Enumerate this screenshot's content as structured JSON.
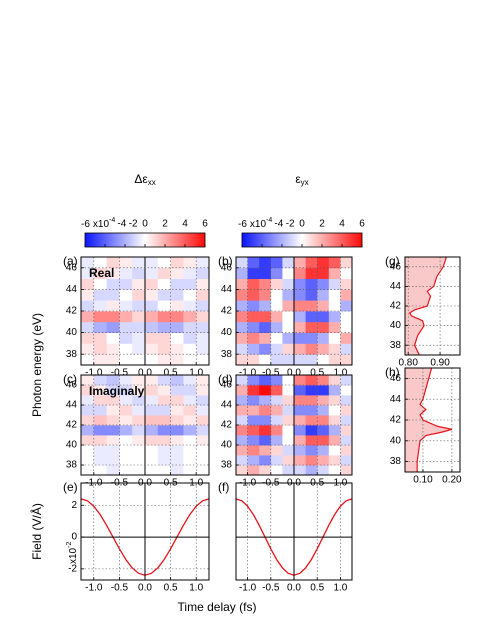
{
  "chart_data": [
    {
      "type": "heatmap",
      "panel_label": "(a)",
      "annotation": "Real",
      "title": "Δε",
      "title_sub": "xx",
      "ylabel": "Photon energy (eV)",
      "colorbar": {
        "ticks": [
          -6,
          -4,
          -2,
          0,
          2,
          4,
          6
        ],
        "multiplier": "x10",
        "exponent": "-4"
      },
      "x": [
        -1.125,
        -0.875,
        -0.625,
        -0.375,
        -0.125,
        0.125,
        0.375,
        0.625,
        0.875,
        1.125
      ],
      "y": [
        37.5,
        38.5,
        39.5,
        40.5,
        41.5,
        42.5,
        43.5,
        44.5,
        45.5,
        46.5
      ],
      "z": [
        [
          0,
          0.5,
          0.5,
          0,
          0,
          0,
          0.5,
          0.5,
          0,
          0
        ],
        [
          0.5,
          1,
          0.5,
          0,
          -0.5,
          0.5,
          1,
          0.5,
          0,
          -0.5
        ],
        [
          1,
          1,
          0,
          -1,
          -0.5,
          1,
          1,
          0,
          -1,
          -0.5
        ],
        [
          -1,
          -2,
          -2.5,
          -1,
          -1,
          -1.5,
          -2,
          -2,
          -1,
          -1
        ],
        [
          2,
          3,
          3,
          2,
          1,
          2,
          3,
          3,
          2,
          1
        ],
        [
          -1,
          -0.5,
          0.5,
          -0.5,
          -1,
          -1,
          0,
          0.5,
          -0.5,
          -1
        ],
        [
          0.5,
          -1,
          -1,
          0,
          1,
          0.5,
          -1,
          -1,
          0,
          1
        ],
        [
          1,
          0,
          -1,
          -1,
          0.5,
          1,
          0,
          -1,
          -1,
          0.5
        ],
        [
          -0.5,
          1,
          0.5,
          -0.5,
          -1,
          -0.5,
          1,
          0.5,
          -0.5,
          -1
        ],
        [
          -0.5,
          0,
          1,
          0.5,
          -0.5,
          -0.5,
          0,
          1,
          0.5,
          -0.5
        ]
      ],
      "clim": [
        -6,
        6
      ],
      "colormap": [
        "#0a14ff",
        "#ffffff",
        "#ff0a0a"
      ],
      "xlim": [
        -1.25,
        1.25
      ],
      "ylim": [
        37,
        47
      ],
      "xticks": [
        {
          "value": -1,
          "label": "-1.0"
        },
        -0.5,
        {
          "value": 0,
          "label": "0.0"
        },
        0.5,
        {
          "value": 1,
          "label": "1.0"
        }
      ],
      "yticks": [
        38,
        40,
        42,
        44,
        46
      ]
    },
    {
      "type": "heatmap",
      "panel_label": "(b)",
      "title": "ε",
      "title_sub": "yx",
      "colorbar": {
        "ticks": [
          -6,
          -4,
          -2,
          0,
          2,
          4,
          6
        ],
        "multiplier": "x10",
        "exponent": "-4"
      },
      "x": [
        -1.125,
        -0.875,
        -0.625,
        -0.375,
        -0.125,
        0.125,
        0.375,
        0.625,
        0.875,
        1.125
      ],
      "y": [
        37.5,
        38.5,
        39.5,
        40.5,
        41.5,
        42.5,
        43.5,
        44.5,
        45.5,
        46.5
      ],
      "z": [
        [
          1,
          1,
          0,
          -1,
          -1,
          -1,
          -1,
          0,
          1,
          1
        ],
        [
          -1,
          -2,
          -3,
          -1,
          1,
          2,
          3,
          2,
          1,
          -1
        ],
        [
          2,
          3,
          2,
          0,
          -2,
          -3,
          -3,
          -2,
          0,
          2
        ],
        [
          -2,
          -3,
          -4,
          -2,
          0,
          2,
          4,
          4,
          2,
          0
        ],
        [
          3,
          4,
          4,
          2,
          0,
          -2,
          -4,
          -4,
          -2,
          0
        ],
        [
          -2,
          -3,
          -2,
          0,
          2,
          3,
          3,
          2,
          0,
          -2
        ],
        [
          3,
          4,
          3,
          0,
          -2,
          -3,
          -4,
          -2,
          0,
          2
        ],
        [
          2,
          4,
          3,
          1,
          -1,
          -3,
          -4,
          -3,
          -1,
          1
        ],
        [
          -2,
          -5,
          -5,
          -3,
          0,
          3,
          5,
          5,
          2,
          0
        ],
        [
          -1,
          -4,
          -5,
          -4,
          -1,
          2,
          4,
          5,
          4,
          1
        ]
      ],
      "clim": [
        -6,
        6
      ],
      "colormap": [
        "#0a14ff",
        "#ffffff",
        "#ff0a0a"
      ],
      "xlim": [
        -1.25,
        1.25
      ],
      "ylim": [
        37,
        47
      ],
      "xticks": [
        {
          "value": -1,
          "label": "-1.0"
        },
        -0.5,
        {
          "value": 0,
          "label": "0.0"
        },
        0.5,
        {
          "value": 1,
          "label": "1.0"
        }
      ],
      "yticks": [
        38,
        40,
        42,
        44,
        46
      ]
    },
    {
      "type": "heatmap",
      "panel_label": "(c)",
      "annotation": "Imaginaly",
      "x": [
        -1.125,
        -0.875,
        -0.625,
        -0.375,
        -0.125,
        0.125,
        0.375,
        0.625,
        0.875,
        1.125
      ],
      "y": [
        37.5,
        38.5,
        39.5,
        40.5,
        41.5,
        42.5,
        43.5,
        44.5,
        45.5,
        46.5
      ],
      "z": [
        [
          0,
          0,
          -0.5,
          0,
          0,
          0,
          0,
          -0.5,
          0,
          0
        ],
        [
          0,
          -0.5,
          -0.5,
          0,
          0,
          0,
          -0.5,
          -0.5,
          0,
          0
        ],
        [
          0,
          -0.5,
          -0.5,
          0,
          0,
          0,
          -0.5,
          -0.5,
          0,
          0
        ],
        [
          1,
          1,
          0.5,
          0,
          0.5,
          1,
          1,
          0.5,
          0,
          0.5
        ],
        [
          -2,
          -3,
          -3,
          -2,
          -1,
          -2,
          -3,
          -3,
          -2,
          -1
        ],
        [
          1,
          1.5,
          1,
          0.5,
          1,
          1.5,
          1.5,
          1,
          0.5,
          1
        ],
        [
          -1,
          -1,
          0.5,
          1,
          -0.5,
          -1,
          -1,
          0.5,
          1,
          -0.5
        ],
        [
          -0.5,
          1,
          1,
          -0.5,
          -1,
          -0.5,
          1,
          1,
          -0.5,
          -1
        ],
        [
          1,
          0.5,
          -1,
          -1,
          0.5,
          1,
          0.5,
          -1,
          -1,
          0.5
        ],
        [
          0.5,
          -1,
          -1.5,
          -0.5,
          0.5,
          0.5,
          -1,
          -1.5,
          -0.5,
          0.5
        ]
      ],
      "clim": [
        -6,
        6
      ],
      "colormap": [
        "#0a14ff",
        "#ffffff",
        "#ff0a0a"
      ],
      "xlim": [
        -1.25,
        1.25
      ],
      "ylim": [
        37,
        47
      ],
      "xticks": [
        {
          "value": -1,
          "label": "-1.0"
        },
        -0.5,
        {
          "value": 0,
          "label": "0.0"
        },
        0.5,
        {
          "value": 1,
          "label": "1.0"
        }
      ],
      "yticks": [
        38,
        40,
        42,
        44,
        46
      ]
    },
    {
      "type": "heatmap",
      "panel_label": "(d)",
      "x": [
        -1.125,
        -0.875,
        -0.625,
        -0.375,
        -0.125,
        0.125,
        0.375,
        0.625,
        0.875,
        1.125
      ],
      "y": [
        37.5,
        38.5,
        39.5,
        40.5,
        41.5,
        42.5,
        43.5,
        44.5,
        45.5,
        46.5
      ],
      "z": [
        [
          1,
          2,
          1,
          0,
          -1,
          -1,
          -2,
          -1,
          0,
          1
        ],
        [
          -1,
          -2,
          -3,
          -1,
          1,
          2,
          3,
          2,
          1,
          -1
        ],
        [
          2,
          3,
          2,
          1,
          -1,
          -2,
          -3,
          -2,
          0,
          1
        ],
        [
          -2,
          -3,
          -4,
          -2,
          0,
          2,
          4,
          4,
          2,
          -1
        ],
        [
          3,
          4,
          5,
          3,
          0,
          -3,
          -5,
          -4,
          -2,
          1
        ],
        [
          -1,
          -3,
          -3,
          -1,
          1,
          2,
          3,
          3,
          1,
          -1
        ],
        [
          2,
          2,
          3,
          2,
          -1,
          -3,
          -3,
          -2,
          0,
          1
        ],
        [
          -2,
          -3,
          -2,
          -1,
          1,
          3,
          3,
          2,
          1,
          -1
        ],
        [
          2,
          5,
          6,
          4,
          0,
          -4,
          -5,
          -5,
          -2,
          0
        ],
        [
          -1,
          -3,
          -4,
          -3,
          0,
          3,
          4,
          3,
          1,
          -1
        ]
      ],
      "clim": [
        -6,
        6
      ],
      "colormap": [
        "#0a14ff",
        "#ffffff",
        "#ff0a0a"
      ],
      "xlim": [
        -1.25,
        1.25
      ],
      "ylim": [
        37,
        47
      ],
      "xticks": [
        {
          "value": -1,
          "label": "-1.0"
        },
        -0.5,
        {
          "value": 0,
          "label": "0.0"
        },
        0.5,
        {
          "value": 1,
          "label": "1.0"
        }
      ],
      "yticks": [
        38,
        40,
        42,
        44,
        46
      ]
    },
    {
      "type": "line",
      "panel_label": "(e)",
      "ylabel": "Field (V/Å)",
      "xlabel": "Time delay (fs)",
      "x": [
        -1.25,
        -1.125,
        -1,
        -0.875,
        -0.75,
        -0.625,
        -0.5,
        -0.375,
        -0.25,
        -0.125,
        0,
        0.125,
        0.25,
        0.375,
        0.5,
        0.625,
        0.75,
        0.875,
        1,
        1.125,
        1.25
      ],
      "values": [
        2.4,
        2.28,
        1.94,
        1.41,
        0.74,
        0,
        -0.74,
        -1.41,
        -1.94,
        -2.28,
        -2.4,
        -2.28,
        -1.94,
        -1.41,
        -0.74,
        0,
        0.74,
        1.41,
        1.94,
        2.28,
        2.4
      ],
      "color": "#e8141c",
      "xlim": [
        -1.25,
        1.25
      ],
      "ylim": [
        -2.7,
        3.4
      ],
      "xticks": [
        {
          "value": -1,
          "label": "-1.0"
        },
        -0.5,
        {
          "value": 0,
          "label": "0.0"
        },
        0.5,
        {
          "value": 1,
          "label": "1.0"
        }
      ],
      "yticks": [
        -2,
        0,
        2
      ],
      "multiplier": "x10",
      "exponent": "-2"
    },
    {
      "type": "line",
      "panel_label": "(f)",
      "x": [
        -1.25,
        -1.125,
        -1,
        -0.875,
        -0.75,
        -0.625,
        -0.5,
        -0.375,
        -0.25,
        -0.125,
        0,
        0.125,
        0.25,
        0.375,
        0.5,
        0.625,
        0.75,
        0.875,
        1,
        1.125,
        1.25
      ],
      "values": [
        2.4,
        2.28,
        1.94,
        1.41,
        0.74,
        0,
        -0.74,
        -1.41,
        -1.94,
        -2.28,
        -2.4,
        -2.28,
        -1.94,
        -1.41,
        -0.74,
        0,
        0.74,
        1.41,
        1.94,
        2.28,
        2.4
      ],
      "color": "#e8141c",
      "xlim": [
        -1.25,
        1.25
      ],
      "ylim": [
        -2.7,
        3.4
      ],
      "xticks": [
        {
          "value": -1,
          "label": "-1.0"
        },
        -0.5,
        {
          "value": 0,
          "label": "0.0"
        },
        0.5,
        {
          "value": 1,
          "label": "1.0"
        }
      ]
    },
    {
      "type": "area",
      "panel_label": "(g)",
      "y": [
        37,
        38,
        39,
        40,
        40.5,
        41,
        41.3,
        41.6,
        42,
        43,
        43.5,
        44,
        45,
        46,
        47
      ],
      "values": [
        0.835,
        0.82,
        0.83,
        0.85,
        0.845,
        0.81,
        0.805,
        0.82,
        0.86,
        0.87,
        0.86,
        0.88,
        0.89,
        0.91,
        0.92
      ],
      "color": "#e8141c",
      "fill": "#f9c9c9",
      "xlim": [
        0.79,
        0.9625
      ],
      "ylim": [
        37,
        47
      ],
      "xticks": [
        {
          "value": 0.8,
          "label": "0.80"
        },
        {
          "value": 0.9,
          "label": "0.90"
        }
      ],
      "yticks": [
        38,
        40,
        42,
        44,
        46
      ]
    },
    {
      "type": "area",
      "panel_label": "(h)",
      "y": [
        37,
        38,
        39,
        40,
        40.5,
        40.8,
        41.1,
        41.4,
        42,
        42.5,
        43,
        43.5,
        44,
        45,
        46,
        47
      ],
      "values": [
        0.08,
        0.08,
        0.085,
        0.09,
        0.11,
        0.16,
        0.2,
        0.15,
        0.1,
        0.09,
        0.11,
        0.09,
        0.1,
        0.11,
        0.12,
        0.13
      ],
      "color": "#e8141c",
      "fill": "#f9c9c9",
      "xlim": [
        0.038,
        0.228
      ],
      "ylim": [
        37,
        47
      ],
      "xticks": [
        {
          "value": 0.1,
          "label": "0.10"
        },
        {
          "value": 0.2,
          "label": "0.20"
        }
      ],
      "yticks": [
        38,
        40,
        42,
        44,
        46
      ]
    }
  ]
}
